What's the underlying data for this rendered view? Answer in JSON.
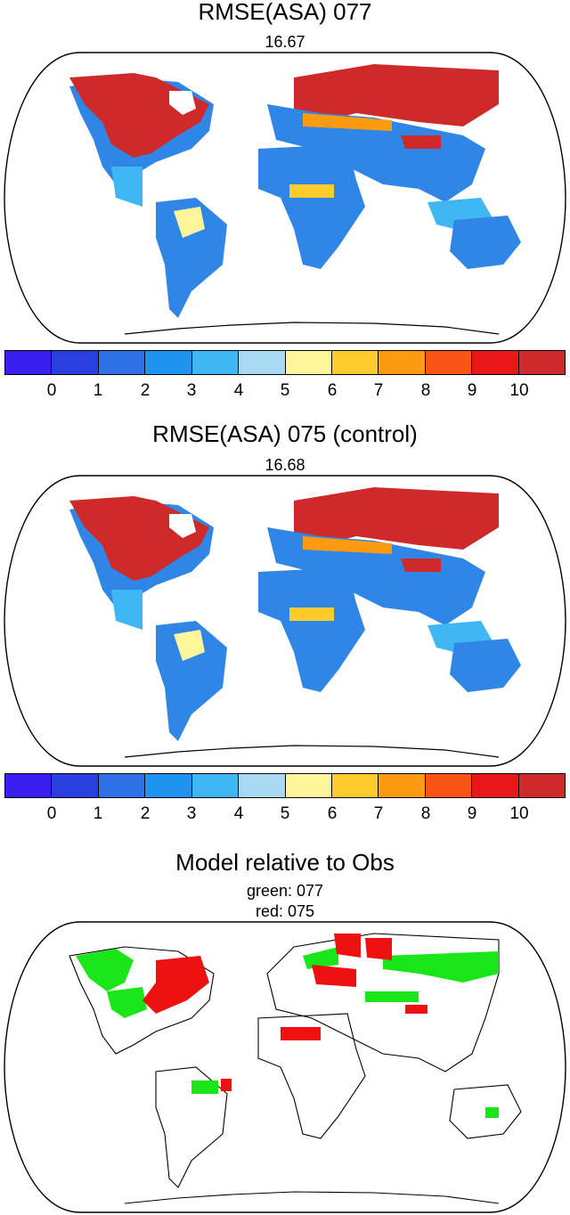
{
  "panel1": {
    "title": "RMSE(ASA) 077",
    "subtitle": "16.67"
  },
  "panel2": {
    "title": "RMSE(ASA) 075 (control)",
    "subtitle": "16.68"
  },
  "panel3": {
    "title": "Model relative to Obs",
    "subtitle1": "green: 077",
    "subtitle2": "red: 075"
  },
  "colorbar": {
    "colors": [
      "#3b1ef2",
      "#2a3fe0",
      "#3070e6",
      "#1f93f0",
      "#41b6f5",
      "#a8d9f2",
      "#fff59a",
      "#fdcb2b",
      "#fd9b10",
      "#fa5516",
      "#e81818",
      "#cf2a2a"
    ],
    "labels": [
      "0",
      "1",
      "2",
      "3",
      "4",
      "5",
      "6",
      "7",
      "8",
      "9",
      "10"
    ]
  },
  "legend_colors": {
    "green": "#19e619",
    "red": "#ee1111"
  }
}
